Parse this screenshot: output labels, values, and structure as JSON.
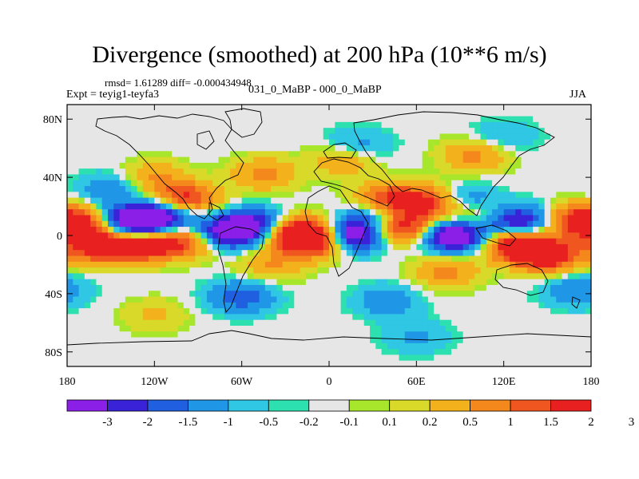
{
  "chart_data": {
    "type": "heatmap",
    "title": "Divergence (smoothed) at 200 hPa (10**6 m/s)",
    "stats_line": "rmsd= 1.61289 diff= -0.000434948",
    "experiment": "Expt = teyig1-teyfa3",
    "subtitle": "031_0_MaBP - 000_0_MaBP",
    "season": "JJA",
    "x_range": [
      -180,
      180
    ],
    "y_range": [
      -90,
      90
    ],
    "x_ticks": [
      {
        "value": -180,
        "label": "180"
      },
      {
        "value": -120,
        "label": "120W"
      },
      {
        "value": -60,
        "label": "60W"
      },
      {
        "value": 0,
        "label": "0"
      },
      {
        "value": 60,
        "label": "60E"
      },
      {
        "value": 120,
        "label": "120E"
      },
      {
        "value": 180,
        "label": "180"
      }
    ],
    "y_ticks": [
      {
        "value": 80,
        "label": "80N"
      },
      {
        "value": 40,
        "label": "40N"
      },
      {
        "value": 0,
        "label": "0"
      },
      {
        "value": -40,
        "label": "40S"
      },
      {
        "value": -80,
        "label": "80S"
      }
    ],
    "colorbar": {
      "colors": [
        "#8b1fe8",
        "#3a22d8",
        "#1f5fe0",
        "#1f97e6",
        "#2fc7e3",
        "#2de0b0",
        "#e6e6e6",
        "#a8e62b",
        "#d9d92a",
        "#f3b21c",
        "#f5881c",
        "#f0561f",
        "#e8201f"
      ],
      "labels": [
        "-3",
        "-2",
        "-1.5",
        "-1",
        "-0.5",
        "-0.2",
        "-0.1",
        "0.1",
        "0.2",
        "0.5",
        "1",
        "1.5",
        "2",
        "3"
      ]
    },
    "features": [
      {
        "lon": -130,
        "lat": 8,
        "value": -3.2
      },
      {
        "lon": -110,
        "lat": 16,
        "value": -2.2
      },
      {
        "lon": -150,
        "lat": 10,
        "value": -1.5
      },
      {
        "lon": -70,
        "lat": 2,
        "value": -2.6
      },
      {
        "lon": -50,
        "lat": 8,
        "value": -1.8
      },
      {
        "lon": 15,
        "lat": 0,
        "value": -3.1
      },
      {
        "lon": 35,
        "lat": 12,
        "value": -1.6
      },
      {
        "lon": 85,
        "lat": 0,
        "value": -3.2
      },
      {
        "lon": 92,
        "lat": 22,
        "value": -2.6
      },
      {
        "lon": 118,
        "lat": 12,
        "value": -2.4
      },
      {
        "lon": 140,
        "lat": 8,
        "value": -1.6
      },
      {
        "lon": -165,
        "lat": 8,
        "value": 2.8
      },
      {
        "lon": 168,
        "lat": 10,
        "value": 2.4
      },
      {
        "lon": -130,
        "lat": -6,
        "value": 2.8
      },
      {
        "lon": -160,
        "lat": -8,
        "value": 2.2
      },
      {
        "lon": -100,
        "lat": -4,
        "value": 2.0
      },
      {
        "lon": -20,
        "lat": 2,
        "value": 3.0
      },
      {
        "lon": -8,
        "lat": -4,
        "value": 2.4
      },
      {
        "lon": 50,
        "lat": 6,
        "value": 3.0
      },
      {
        "lon": 42,
        "lat": 25,
        "value": 2.2
      },
      {
        "lon": 75,
        "lat": 22,
        "value": 2.6
      },
      {
        "lon": 105,
        "lat": 15,
        "value": 2.8
      },
      {
        "lon": 130,
        "lat": -6,
        "value": 3.0
      },
      {
        "lon": 150,
        "lat": -14,
        "value": 2.5
      },
      {
        "lon": -100,
        "lat": 24,
        "value": 2.8
      },
      {
        "lon": -45,
        "lat": 42,
        "value": 1.2
      },
      {
        "lon": -120,
        "lat": 40,
        "value": 1.0
      },
      {
        "lon": 10,
        "lat": 52,
        "value": 1.0
      },
      {
        "lon": 100,
        "lat": 55,
        "value": 1.2
      },
      {
        "lon": -40,
        "lat": -20,
        "value": 1.0
      },
      {
        "lon": 80,
        "lat": -25,
        "value": 1.2
      },
      {
        "lon": -60,
        "lat": -42,
        "value": -1.4
      },
      {
        "lon": 40,
        "lat": -45,
        "value": -0.9
      },
      {
        "lon": 170,
        "lat": -38,
        "value": -1.0
      },
      {
        "lon": 20,
        "lat": 62,
        "value": -0.8
      },
      {
        "lon": -150,
        "lat": 32,
        "value": -0.9
      },
      {
        "lon": 120,
        "lat": 68,
        "value": -0.6
      },
      {
        "lon": -120,
        "lat": -55,
        "value": 0.6
      },
      {
        "lon": 60,
        "lat": -70,
        "value": -0.6
      }
    ],
    "land_mask": "continent outlines (coarse grid)"
  }
}
